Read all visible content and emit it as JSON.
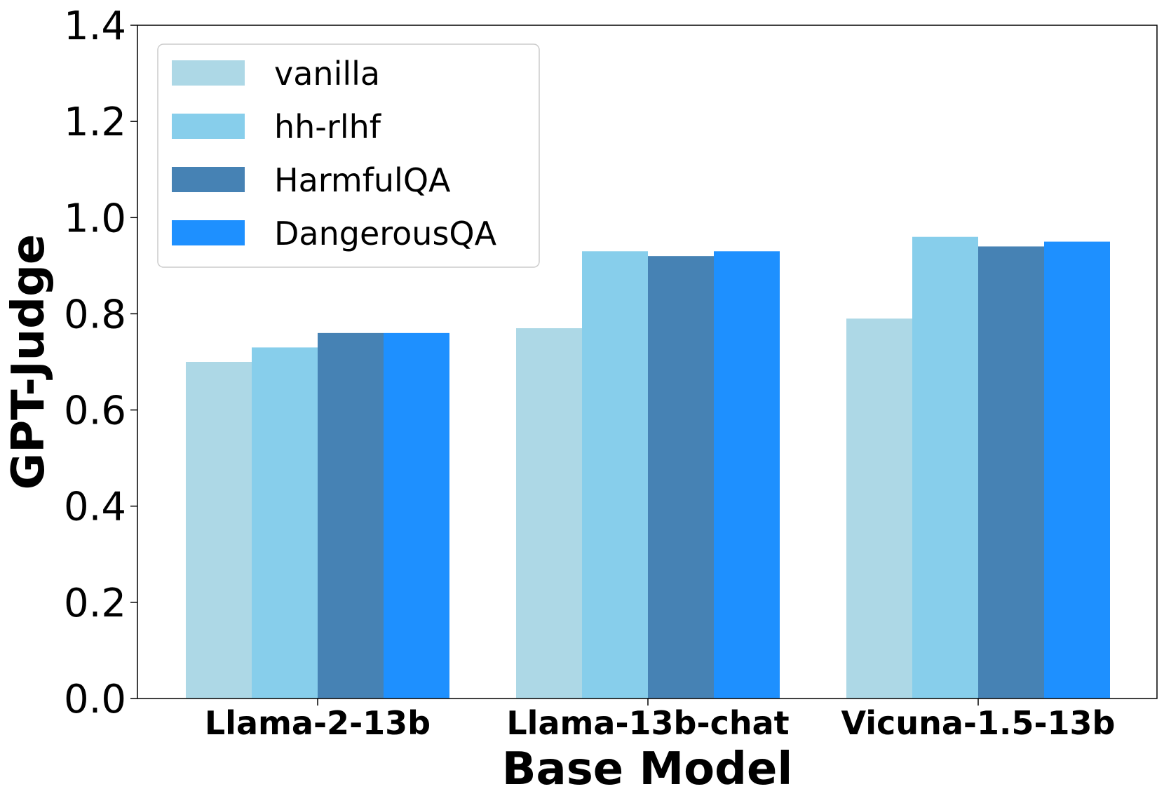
{
  "chart_data": {
    "type": "bar",
    "title": "",
    "xlabel": "Base Model",
    "ylabel": "GPT-Judge",
    "ylim": [
      0,
      1.4
    ],
    "yticks": [
      "0.0",
      "0.2",
      "0.4",
      "0.6",
      "0.8",
      "1.0",
      "1.2",
      "1.4"
    ],
    "grid": false,
    "legend_position": "top-left",
    "categories": [
      "Llama-2-13b",
      "Llama-13b-chat",
      "Vicuna-1.5-13b"
    ],
    "series": [
      {
        "name": "vanilla",
        "color": "#add8e6",
        "values": [
          0.7,
          0.77,
          0.79
        ]
      },
      {
        "name": "hh-rlhf",
        "color": "#87ceeb",
        "values": [
          0.73,
          0.93,
          0.96
        ]
      },
      {
        "name": "HarmfulQA",
        "color": "#4682b4",
        "values": [
          0.76,
          0.92,
          0.94
        ]
      },
      {
        "name": "DangerousQA",
        "color": "#1e90ff",
        "values": [
          0.76,
          0.93,
          0.95
        ]
      }
    ]
  }
}
